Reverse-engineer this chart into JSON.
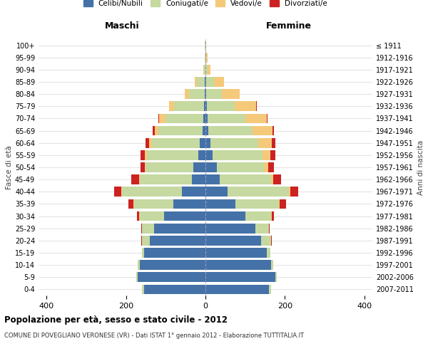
{
  "age_groups": [
    "0-4",
    "5-9",
    "10-14",
    "15-19",
    "20-24",
    "25-29",
    "30-34",
    "35-39",
    "40-44",
    "45-49",
    "50-54",
    "55-59",
    "60-64",
    "65-69",
    "70-74",
    "75-79",
    "80-84",
    "85-89",
    "90-94",
    "95-99",
    "100+"
  ],
  "birth_years": [
    "2007-2011",
    "2002-2006",
    "1997-2001",
    "1992-1996",
    "1987-1991",
    "1982-1986",
    "1977-1981",
    "1972-1976",
    "1967-1971",
    "1962-1966",
    "1957-1961",
    "1952-1956",
    "1947-1951",
    "1942-1946",
    "1937-1941",
    "1932-1936",
    "1927-1931",
    "1922-1926",
    "1917-1921",
    "1912-1916",
    "≤ 1911"
  ],
  "males": {
    "celibi": [
      155,
      170,
      165,
      155,
      140,
      130,
      105,
      80,
      60,
      35,
      30,
      18,
      14,
      8,
      6,
      4,
      2,
      2,
      0,
      0,
      0
    ],
    "coniugati": [
      5,
      5,
      5,
      5,
      20,
      30,
      60,
      100,
      150,
      130,
      120,
      130,
      120,
      110,
      95,
      75,
      40,
      20,
      4,
      2,
      1
    ],
    "vedovi": [
      0,
      0,
      0,
      0,
      0,
      0,
      2,
      2,
      2,
      2,
      2,
      5,
      8,
      10,
      15,
      12,
      10,
      5,
      2,
      0,
      0
    ],
    "divorziati": [
      0,
      0,
      0,
      0,
      2,
      2,
      5,
      12,
      18,
      20,
      12,
      10,
      8,
      5,
      2,
      0,
      0,
      0,
      0,
      0,
      0
    ]
  },
  "females": {
    "nubili": [
      160,
      175,
      165,
      155,
      140,
      125,
      100,
      75,
      55,
      35,
      28,
      18,
      12,
      8,
      5,
      3,
      2,
      2,
      0,
      0,
      0
    ],
    "coniugate": [
      5,
      5,
      5,
      8,
      25,
      35,
      65,
      110,
      155,
      130,
      120,
      125,
      120,
      110,
      95,
      70,
      40,
      20,
      5,
      2,
      0
    ],
    "vedove": [
      0,
      0,
      0,
      0,
      0,
      0,
      2,
      2,
      3,
      5,
      10,
      20,
      35,
      50,
      55,
      55,
      45,
      25,
      8,
      3,
      1
    ],
    "divorziate": [
      0,
      0,
      0,
      0,
      2,
      2,
      5,
      15,
      20,
      20,
      15,
      12,
      8,
      5,
      2,
      2,
      0,
      0,
      0,
      0,
      0
    ]
  },
  "color_celibi": "#4472a8",
  "color_coniugati": "#c5d9a0",
  "color_vedovi": "#f5c97a",
  "color_divorziati": "#cc2222",
  "xlim": 420,
  "title": "Popolazione per età, sesso e stato civile - 2012",
  "subtitle": "COMUNE DI POVEGLIANO VERONESE (VR) - Dati ISTAT 1° gennaio 2012 - Elaborazione TUTTITALIA.IT",
  "ylabel": "Fasce di età",
  "ylabel_right": "Anni di nascita",
  "xlabel_maschi": "Maschi",
  "xlabel_femmine": "Femmine"
}
